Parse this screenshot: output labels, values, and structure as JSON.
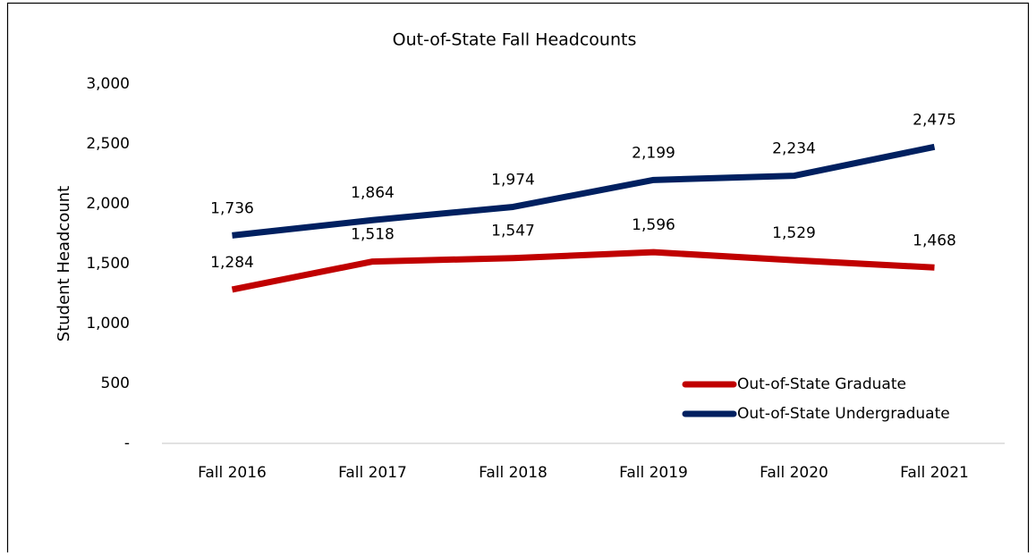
{
  "chart_data": {
    "type": "line",
    "title": "Out-of-State Fall Headcounts",
    "y_label": "Student Headcount",
    "categories": [
      "Fall 2016",
      "Fall 2017",
      "Fall 2018",
      "Fall 2019",
      "Fall 2020",
      "Fall 2021"
    ],
    "series": [
      {
        "name": "Out-of-State Graduate",
        "color": "#c00000",
        "values": [
          1284,
          1518,
          1547,
          1596,
          1529,
          1468
        ],
        "value_labels": [
          "1,284",
          "1,518",
          "1,547",
          "1,596",
          "1,529",
          "1,468"
        ]
      },
      {
        "name": "Out-of-State Undergraduate",
        "color": "#002060",
        "values": [
          1736,
          1864,
          1974,
          2199,
          2234,
          2475
        ],
        "value_labels": [
          "1,736",
          "1,864",
          "1,974",
          "2,199",
          "2,234",
          "2,475"
        ]
      }
    ],
    "ylim": [
      0,
      3000
    ],
    "yticks": [
      {
        "value": 0,
        "label": "-"
      },
      500,
      {
        "value": 1000,
        "label": "1,000"
      },
      {
        "value": 1500,
        "label": "1,500"
      },
      {
        "value": 2000,
        "label": "2,000"
      },
      {
        "value": 2500,
        "label": "2,500"
      },
      {
        "value": 3000,
        "label": "3,000"
      }
    ],
    "grid": false,
    "legend": "lower right"
  }
}
